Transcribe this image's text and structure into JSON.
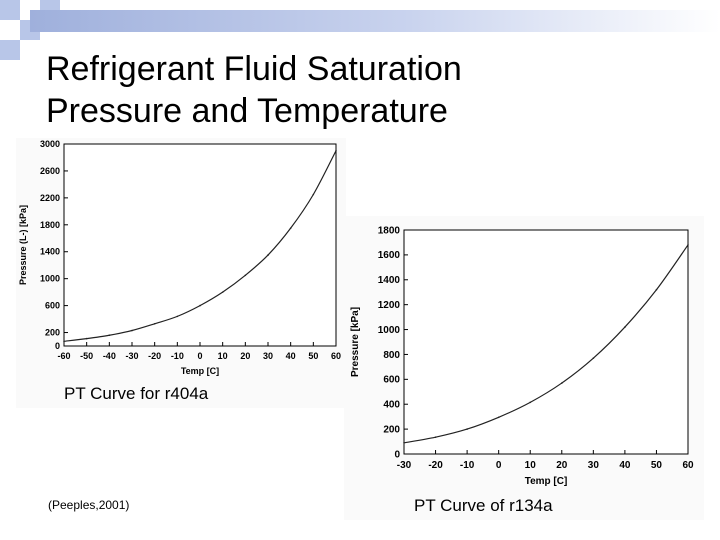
{
  "slide": {
    "title_line1": "Refrigerant Fluid Saturation",
    "title_line2": "Pressure and Temperature",
    "citation": "(Peeples,2001)"
  },
  "colors": {
    "accent": "#9fb0dc",
    "checker": "#b8c6e8"
  },
  "chart_data": [
    {
      "type": "line",
      "caption": "PT Curve for r404a",
      "xlabel": "Temp [C]",
      "ylabel": "Pressure (L-) [kPa]",
      "xlim": [
        -60,
        60
      ],
      "ylim": [
        0,
        3000
      ],
      "xticks": [
        "-60",
        "-50",
        "-40",
        "-30",
        "-20",
        "-10",
        "0",
        "10",
        "20",
        "30",
        "40",
        "50",
        "60"
      ],
      "yticks": [
        "0",
        "200",
        "600",
        "1000",
        "1400",
        "1800",
        "2200",
        "2600",
        "3000"
      ],
      "grid": false,
      "x": [
        -60,
        -50,
        -40,
        -30,
        -20,
        -10,
        0,
        10,
        20,
        30,
        40,
        50,
        60
      ],
      "values": [
        70,
        110,
        160,
        230,
        330,
        440,
        600,
        800,
        1050,
        1350,
        1750,
        2250,
        2900
      ]
    },
    {
      "type": "line",
      "caption": "PT Curve of r134a",
      "xlabel": "Temp [C]",
      "ylabel": "Pressure [kPa]",
      "xlim": [
        -30,
        60
      ],
      "ylim": [
        0,
        1800
      ],
      "xticks": [
        "-30",
        "-20",
        "-10",
        "0",
        "10",
        "20",
        "30",
        "40",
        "50",
        "60"
      ],
      "yticks": [
        "0",
        "200",
        "400",
        "600",
        "800",
        "1000",
        "1200",
        "1400",
        "1600",
        "1800"
      ],
      "grid": false,
      "x": [
        -30,
        -20,
        -10,
        0,
        10,
        20,
        30,
        40,
        50,
        60
      ],
      "values": [
        90,
        135,
        200,
        295,
        415,
        570,
        770,
        1020,
        1320,
        1680
      ]
    }
  ]
}
